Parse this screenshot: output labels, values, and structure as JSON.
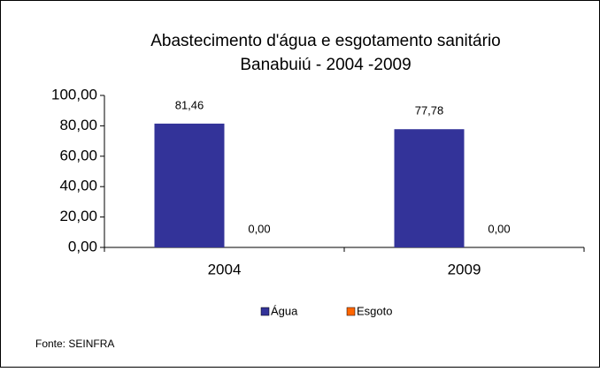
{
  "chart_data": {
    "type": "bar",
    "title": [
      "Abastecimento d'água e esgotamento sanitário",
      "Banabuiú - 2004 -2009"
    ],
    "categories": [
      "2004",
      "2009"
    ],
    "series": [
      {
        "name": "Água",
        "color": "#333399",
        "values": [
          81.46,
          77.78
        ],
        "value_labels": [
          "81,46",
          "77,78"
        ]
      },
      {
        "name": "Esgoto",
        "color": "#ff6600",
        "values": [
          0,
          0
        ],
        "value_labels": [
          "0,00",
          "0,00"
        ]
      }
    ],
    "ylim": [
      0,
      100
    ],
    "yticks": [
      {
        "value": 0,
        "label": "0,00"
      },
      {
        "value": 20,
        "label": "20,00"
      },
      {
        "value": 40,
        "label": "40,00"
      },
      {
        "value": 60,
        "label": "60,00"
      },
      {
        "value": 80,
        "label": "80,00"
      },
      {
        "value": 100,
        "label": "100,00"
      }
    ],
    "legend": "bottom",
    "source": "Fonte: SEINFRA"
  }
}
